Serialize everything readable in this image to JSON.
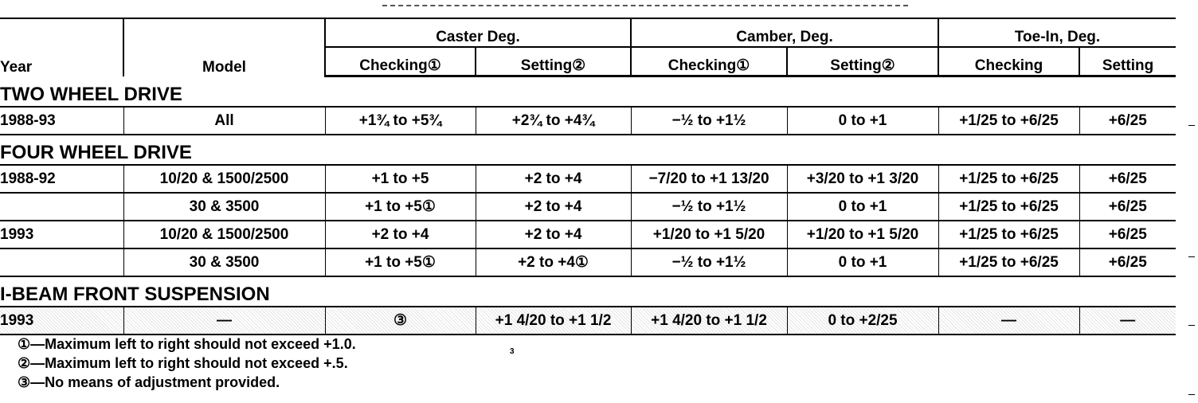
{
  "headers": {
    "year": "Year",
    "model": "Model",
    "caster": "Caster Deg.",
    "camber": "Camber, Deg.",
    "toe_in": "Toe-In, Deg.",
    "checking_1": "Checking①",
    "setting_2": "Setting②",
    "checking": "Checking",
    "setting": "Setting"
  },
  "sections": [
    {
      "title": "TWO WHEEL DRIVE",
      "rows": [
        {
          "year": "1988-93",
          "model": "All",
          "caster_check": "+1¾ to +5¾",
          "caster_set": "+2¾ to +4¾",
          "camber_check": "−½ to +1½",
          "camber_set": "0 to +1",
          "toe_check": "+1/25 to +6/25",
          "toe_set": "+6/25"
        }
      ]
    },
    {
      "title": "FOUR WHEEL DRIVE",
      "rows": [
        {
          "year": "1988-92",
          "model": "10/20 & 1500/2500",
          "caster_check": "+1 to +5",
          "caster_set": "+2 to +4",
          "camber_check": "−7/20 to +1 13/20",
          "camber_set": "+3/20 to +1 3/20",
          "toe_check": "+1/25 to +6/25",
          "toe_set": "+6/25"
        },
        {
          "year": "",
          "model": "30 & 3500",
          "caster_check": "+1 to +5①",
          "caster_set": "+2 to +4",
          "camber_check": "−½ to +1½",
          "camber_set": "0 to +1",
          "toe_check": "+1/25 to +6/25",
          "toe_set": "+6/25"
        },
        {
          "year": "1993",
          "model": "10/20 & 1500/2500",
          "caster_check": "+2 to +4",
          "caster_set": "+2 to +4",
          "camber_check": "+1/20 to +1 5/20",
          "camber_set": "+1/20 to +1 5/20",
          "toe_check": "+1/25 to +6/25",
          "toe_set": "+6/25"
        },
        {
          "year": "",
          "model": "30 & 3500",
          "caster_check": "+1 to +5①",
          "caster_set": "+2 to +4①",
          "camber_check": "−½ to +1½",
          "camber_set": "0 to +1",
          "toe_check": "+1/25 to +6/25",
          "toe_set": "+6/25"
        }
      ]
    },
    {
      "title": "I-BEAM FRONT SUSPENSION",
      "rows": [
        {
          "year": "1993",
          "model": "—",
          "caster_check": "③",
          "caster_set": "+1 4/20 to +1 1/2",
          "camber_check": "+1 4/20 to +1 1/2",
          "camber_set": "0 to +2/25",
          "toe_check": "—",
          "toe_set": "—"
        }
      ]
    }
  ],
  "footnotes": [
    "①—Maximum left to right should not exceed +1.0.",
    "②—Maximum left to right should not exceed +.5.",
    "③—No means of adjustment provided."
  ],
  "stray_mark": "3"
}
